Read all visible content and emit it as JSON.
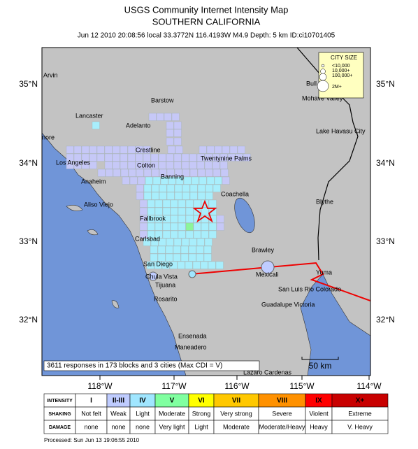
{
  "header": {
    "title": "USGS Community Internet Intensity Map",
    "subtitle": "SOUTHERN CALIFORNIA",
    "info": "Jun 12 2010 20:08:56 local 33.3772N 116.4193W M4.9 Depth: 5 km ID:ci10701405"
  },
  "map": {
    "lat_labels": [
      "35°N",
      "34°N",
      "33°N",
      "32°N"
    ],
    "lon_labels": [
      "118°W",
      "117°W",
      "116°W",
      "115°W",
      "114°W"
    ],
    "cities": [
      "Arvin",
      "Lancaster",
      "Barstow",
      "Adelanto",
      "nore",
      "Crestline",
      "Los Angeles",
      "Colton",
      "Twentynine Palms",
      "Banning",
      "Anaheim",
      "Coachella",
      "Aliso Viejo",
      "Fallbrook",
      "Blythe",
      "Carlsbad",
      "Brawley",
      "San Diego",
      "Mexicali",
      "Yuma",
      "Chula Vista",
      "Tijuana",
      "San Luis Rio Colorado",
      "Rosarito",
      "Guadalupe Victoria",
      "Ensenada",
      "Maneadero",
      "Lazaro Cardenas",
      "Bull",
      "Mohave Valley",
      "Lake Havasu City"
    ],
    "city_size": {
      "title": "CITY SIZE",
      "entries": [
        "<10,000",
        "10,000+",
        "100,000+",
        "2M+"
      ]
    },
    "summary": "3611 responses in 173 blocks and 3 cities (Max CDI = V)",
    "scale": "50 km"
  },
  "legend": {
    "row_labels": [
      "INTENSITY",
      "SHAKING",
      "DAMAGE"
    ],
    "columns": [
      {
        "intensity": "I",
        "shaking": "Not felt",
        "damage": "none"
      },
      {
        "intensity": "II-III",
        "shaking": "Weak",
        "damage": "none"
      },
      {
        "intensity": "IV",
        "shaking": "Light",
        "damage": "none"
      },
      {
        "intensity": "V",
        "shaking": "Moderate",
        "damage": "Very light"
      },
      {
        "intensity": "VI",
        "shaking": "Strong",
        "damage": "Light"
      },
      {
        "intensity": "VII",
        "shaking": "Very strong",
        "damage": "Moderate"
      },
      {
        "intensity": "VIII",
        "shaking": "Severe",
        "damage": "Moderate/Heavy"
      },
      {
        "intensity": "IX",
        "shaking": "Violent",
        "damage": "Heavy"
      },
      {
        "intensity": "X+",
        "shaking": "Extreme",
        "damage": "V. Heavy"
      }
    ]
  },
  "footer": "Processed: Sun Jun 13 19:06:55 2010"
}
